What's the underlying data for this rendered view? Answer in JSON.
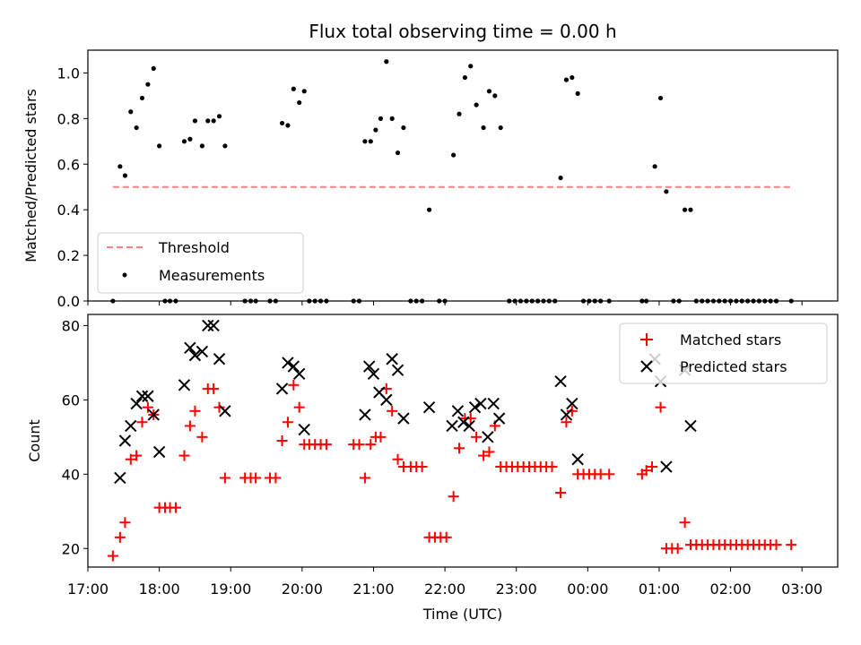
{
  "chart_data": [
    {
      "type": "scatter",
      "title": "Flux total observing time = 0.00 h",
      "xlabel": "",
      "ylabel": "Matched/Predicted stars",
      "ylim": [
        0,
        1.1
      ],
      "yticks": [
        "0.0",
        "0.2",
        "0.4",
        "0.6",
        "0.8",
        "1.0"
      ],
      "xlim": [
        17.0,
        27.5
      ],
      "grid": false,
      "legend_position": "lower-left",
      "threshold": {
        "name": "Threshold",
        "value": 0.5,
        "x_range": [
          17.35,
          26.85
        ],
        "color": "#ff7f7f",
        "style": "dashed"
      },
      "series": [
        {
          "name": "Measurements",
          "color": "#000000",
          "marker": "dot",
          "points": [
            [
              17.35,
              0
            ],
            [
              17.45,
              0.59
            ],
            [
              17.52,
              0.55
            ],
            [
              17.6,
              0.83
            ],
            [
              17.68,
              0.76
            ],
            [
              17.76,
              0.89
            ],
            [
              17.84,
              0.95
            ],
            [
              17.92,
              1.02
            ],
            [
              18.0,
              0.68
            ],
            [
              18.08,
              0
            ],
            [
              18.15,
              0
            ],
            [
              18.23,
              0
            ],
            [
              18.35,
              0.7
            ],
            [
              18.43,
              0.71
            ],
            [
              18.5,
              0.79
            ],
            [
              18.6,
              0.68
            ],
            [
              18.68,
              0.79
            ],
            [
              18.76,
              0.79
            ],
            [
              18.84,
              0.81
            ],
            [
              18.92,
              0.68
            ],
            [
              19.2,
              0
            ],
            [
              19.28,
              0
            ],
            [
              19.35,
              0
            ],
            [
              19.55,
              0
            ],
            [
              19.63,
              0
            ],
            [
              19.72,
              0.78
            ],
            [
              19.8,
              0.77
            ],
            [
              19.88,
              0.93
            ],
            [
              19.96,
              0.87
            ],
            [
              20.03,
              0.92
            ],
            [
              20.1,
              0
            ],
            [
              20.18,
              0
            ],
            [
              20.26,
              0
            ],
            [
              20.34,
              0
            ],
            [
              20.72,
              0
            ],
            [
              20.8,
              0
            ],
            [
              20.88,
              0.7
            ],
            [
              20.96,
              0.7
            ],
            [
              21.03,
              0.75
            ],
            [
              21.1,
              0.8
            ],
            [
              21.18,
              1.05
            ],
            [
              21.26,
              0.8
            ],
            [
              21.34,
              0.65
            ],
            [
              21.42,
              0.76
            ],
            [
              21.52,
              0
            ],
            [
              21.6,
              0
            ],
            [
              21.68,
              0
            ],
            [
              21.78,
              0.4
            ],
            [
              21.92,
              0
            ],
            [
              22.0,
              0
            ],
            [
              22.12,
              0.64
            ],
            [
              22.2,
              0.82
            ],
            [
              22.28,
              0.98
            ],
            [
              22.36,
              1.03
            ],
            [
              22.44,
              0.86
            ],
            [
              22.54,
              0.76
            ],
            [
              22.62,
              0.92
            ],
            [
              22.7,
              0.9
            ],
            [
              22.78,
              0.76
            ],
            [
              22.9,
              0
            ],
            [
              22.98,
              0
            ],
            [
              23.06,
              0
            ],
            [
              23.14,
              0
            ],
            [
              23.22,
              0
            ],
            [
              23.3,
              0
            ],
            [
              23.38,
              0
            ],
            [
              23.46,
              0
            ],
            [
              23.54,
              0
            ],
            [
              23.62,
              0.54
            ],
            [
              23.7,
              0.97
            ],
            [
              23.78,
              0.98
            ],
            [
              23.86,
              0.91
            ],
            [
              23.94,
              0
            ],
            [
              24.02,
              0
            ],
            [
              24.1,
              0
            ],
            [
              24.18,
              0
            ],
            [
              24.3,
              0
            ],
            [
              24.76,
              0
            ],
            [
              24.82,
              0
            ],
            [
              24.94,
              0.59
            ],
            [
              25.02,
              0.89
            ],
            [
              25.1,
              0.48
            ],
            [
              25.2,
              0
            ],
            [
              25.28,
              0
            ],
            [
              25.36,
              0.4
            ],
            [
              25.44,
              0.4
            ],
            [
              25.52,
              0
            ],
            [
              25.6,
              0
            ],
            [
              25.68,
              0
            ],
            [
              25.76,
              0
            ],
            [
              25.84,
              0
            ],
            [
              25.92,
              0
            ],
            [
              26.0,
              0
            ],
            [
              26.08,
              0
            ],
            [
              26.16,
              0
            ],
            [
              26.24,
              0
            ],
            [
              26.32,
              0
            ],
            [
              26.4,
              0
            ],
            [
              26.48,
              0
            ],
            [
              26.56,
              0
            ],
            [
              26.64,
              0
            ],
            [
              26.85,
              0
            ]
          ]
        }
      ]
    },
    {
      "type": "scatter",
      "title": "",
      "xlabel": "Time (UTC)",
      "ylabel": "Count",
      "ylim": [
        15,
        83
      ],
      "yticks": [
        "20",
        "40",
        "60",
        "80"
      ],
      "xlim": [
        17.0,
        27.5
      ],
      "xticks": [
        "17:00",
        "18:00",
        "19:00",
        "20:00",
        "21:00",
        "22:00",
        "23:00",
        "00:00",
        "01:00",
        "02:00",
        "03:00"
      ],
      "grid": false,
      "legend_position": "upper-right",
      "series": [
        {
          "name": "Matched stars",
          "color": "#ff0000",
          "marker": "plus",
          "points": [
            [
              17.35,
              18
            ],
            [
              17.45,
              23
            ],
            [
              17.52,
              27
            ],
            [
              17.6,
              44
            ],
            [
              17.68,
              45
            ],
            [
              17.76,
              54
            ],
            [
              17.84,
              58
            ],
            [
              17.92,
              56
            ],
            [
              18.0,
              31
            ],
            [
              18.08,
              31
            ],
            [
              18.15,
              31
            ],
            [
              18.23,
              31
            ],
            [
              18.35,
              45
            ],
            [
              18.43,
              53
            ],
            [
              18.5,
              57
            ],
            [
              18.6,
              50
            ],
            [
              18.68,
              63
            ],
            [
              18.76,
              63
            ],
            [
              18.84,
              58
            ],
            [
              18.92,
              39
            ],
            [
              19.2,
              39
            ],
            [
              19.28,
              39
            ],
            [
              19.35,
              39
            ],
            [
              19.55,
              39
            ],
            [
              19.63,
              39
            ],
            [
              19.72,
              49
            ],
            [
              19.8,
              54
            ],
            [
              19.88,
              64
            ],
            [
              19.96,
              58
            ],
            [
              20.03,
              48
            ],
            [
              20.1,
              48
            ],
            [
              20.18,
              48
            ],
            [
              20.26,
              48
            ],
            [
              20.34,
              48
            ],
            [
              20.72,
              48
            ],
            [
              20.8,
              48
            ],
            [
              20.88,
              39
            ],
            [
              20.96,
              48
            ],
            [
              21.03,
              50
            ],
            [
              21.1,
              50
            ],
            [
              21.18,
              63
            ],
            [
              21.26,
              57
            ],
            [
              21.34,
              44
            ],
            [
              21.42,
              42
            ],
            [
              21.52,
              42
            ],
            [
              21.6,
              42
            ],
            [
              21.68,
              42
            ],
            [
              21.78,
              23
            ],
            [
              21.86,
              23
            ],
            [
              21.94,
              23
            ],
            [
              22.02,
              23
            ],
            [
              22.12,
              34
            ],
            [
              22.2,
              47
            ],
            [
              22.28,
              55
            ],
            [
              22.36,
              55
            ],
            [
              22.44,
              50
            ],
            [
              22.54,
              45
            ],
            [
              22.62,
              46
            ],
            [
              22.7,
              53
            ],
            [
              22.78,
              42
            ],
            [
              22.86,
              42
            ],
            [
              22.94,
              42
            ],
            [
              23.02,
              42
            ],
            [
              23.1,
              42
            ],
            [
              23.18,
              42
            ],
            [
              23.26,
              42
            ],
            [
              23.34,
              42
            ],
            [
              23.42,
              42
            ],
            [
              23.5,
              42
            ],
            [
              23.62,
              35
            ],
            [
              23.7,
              54
            ],
            [
              23.78,
              57
            ],
            [
              23.86,
              40
            ],
            [
              23.94,
              40
            ],
            [
              24.02,
              40
            ],
            [
              24.1,
              40
            ],
            [
              24.18,
              40
            ],
            [
              24.3,
              40
            ],
            [
              24.76,
              40
            ],
            [
              24.82,
              41
            ],
            [
              24.9,
              42
            ],
            [
              25.02,
              58
            ],
            [
              25.1,
              20
            ],
            [
              25.18,
              20
            ],
            [
              25.26,
              20
            ],
            [
              25.36,
              27
            ],
            [
              25.44,
              21
            ],
            [
              25.52,
              21
            ],
            [
              25.6,
              21
            ],
            [
              25.68,
              21
            ],
            [
              25.76,
              21
            ],
            [
              25.84,
              21
            ],
            [
              25.92,
              21
            ],
            [
              26.0,
              21
            ],
            [
              26.08,
              21
            ],
            [
              26.16,
              21
            ],
            [
              26.24,
              21
            ],
            [
              26.32,
              21
            ],
            [
              26.4,
              21
            ],
            [
              26.48,
              21
            ],
            [
              26.56,
              21
            ],
            [
              26.64,
              21
            ],
            [
              26.85,
              21
            ]
          ]
        },
        {
          "name": "Predicted stars",
          "color": "#000000",
          "marker": "x",
          "points": [
            [
              17.45,
              39
            ],
            [
              17.52,
              49
            ],
            [
              17.6,
              53
            ],
            [
              17.68,
              59
            ],
            [
              17.76,
              61
            ],
            [
              17.84,
              61
            ],
            [
              17.92,
              56
            ],
            [
              18.0,
              46
            ],
            [
              18.35,
              64
            ],
            [
              18.43,
              74
            ],
            [
              18.5,
              72
            ],
            [
              18.6,
              73
            ],
            [
              18.68,
              80
            ],
            [
              18.76,
              80
            ],
            [
              18.84,
              71
            ],
            [
              18.92,
              57
            ],
            [
              19.72,
              63
            ],
            [
              19.8,
              70
            ],
            [
              19.88,
              69
            ],
            [
              19.96,
              67
            ],
            [
              20.03,
              52
            ],
            [
              20.88,
              56
            ],
            [
              20.94,
              69
            ],
            [
              21.0,
              67
            ],
            [
              21.08,
              62
            ],
            [
              21.18,
              60
            ],
            [
              21.26,
              71
            ],
            [
              21.34,
              68
            ],
            [
              21.42,
              55
            ],
            [
              21.78,
              58
            ],
            [
              22.1,
              53
            ],
            [
              22.18,
              57
            ],
            [
              22.26,
              54
            ],
            [
              22.34,
              53
            ],
            [
              22.42,
              58
            ],
            [
              22.5,
              59
            ],
            [
              22.6,
              50
            ],
            [
              22.68,
              59
            ],
            [
              22.76,
              55
            ],
            [
              23.62,
              65
            ],
            [
              23.7,
              56
            ],
            [
              23.78,
              59
            ],
            [
              23.86,
              44
            ],
            [
              24.94,
              71
            ],
            [
              25.02,
              65
            ],
            [
              25.1,
              42
            ],
            [
              25.36,
              68
            ],
            [
              25.44,
              53
            ]
          ]
        }
      ]
    }
  ]
}
